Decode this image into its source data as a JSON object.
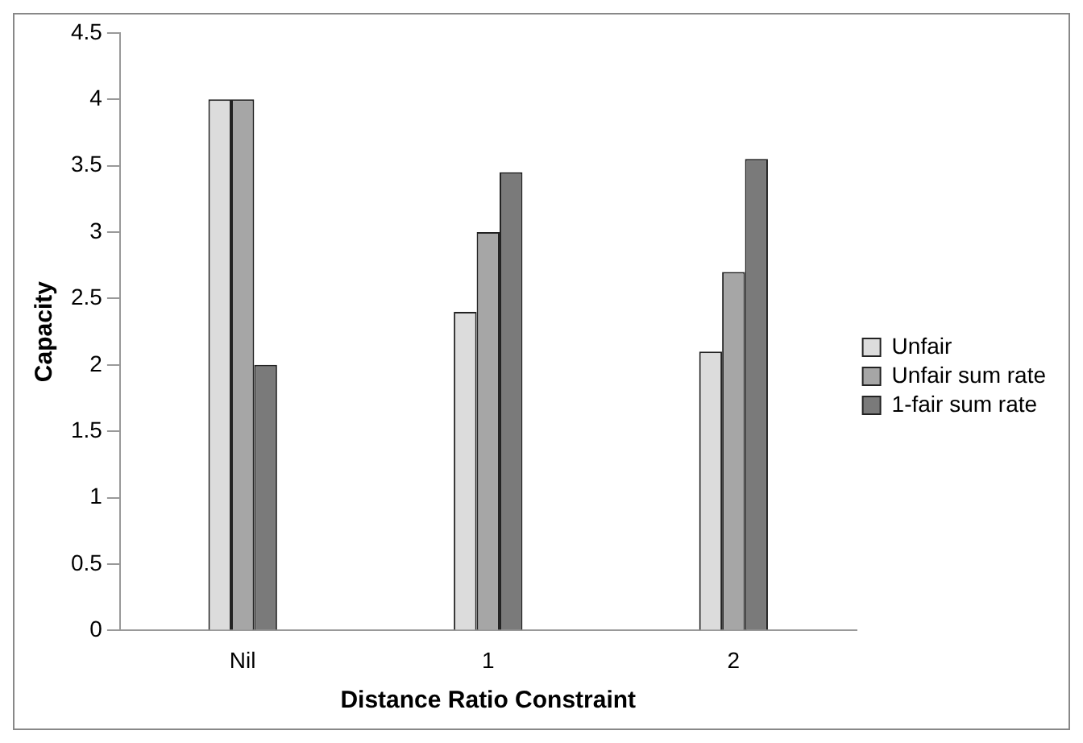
{
  "chart_data": {
    "type": "bar",
    "xlabel": "Distance Ratio Constraint",
    "ylabel": "Capacity",
    "categories": [
      "Nil",
      "1",
      "2"
    ],
    "series": [
      {
        "name": "Unfair",
        "color": "#dcdcdc",
        "values": [
          4,
          2.4,
          2.1
        ]
      },
      {
        "name": "Unfair sum rate",
        "color": "#a6a6a6",
        "values": [
          4,
          3,
          2.7
        ]
      },
      {
        "name": "1-fair sum rate",
        "color": "#7a7a7a",
        "values": [
          2,
          3.45,
          3.55
        ]
      }
    ],
    "ylim": [
      0,
      4.5
    ],
    "yticks": [
      0,
      0.5,
      1,
      1.5,
      2,
      2.5,
      3,
      3.5,
      4,
      4.5
    ],
    "grid": false,
    "legend": "right"
  }
}
